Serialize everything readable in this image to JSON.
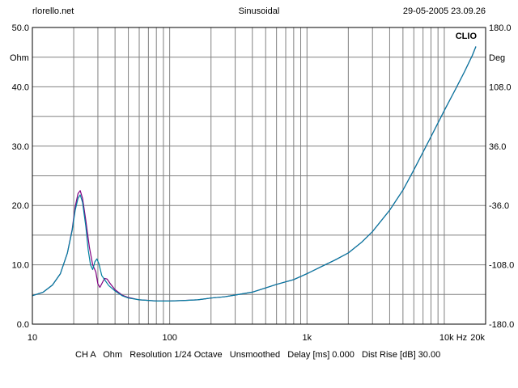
{
  "header": {
    "site": "rlorello.net",
    "title": "Sinusoidal",
    "timestamp": "29-05-2005 23.09.26"
  },
  "footer": {
    "info": "CH A   Ohm   Resolution 1/24 Octave   Unsmoothed   Delay [ms] 0.000   Dist Rise [dB] 30.00"
  },
  "brand": "CLIO",
  "colors": {
    "grid": "#808080",
    "series_a": "#800080",
    "series_b": "#0080a0"
  },
  "chart_data": {
    "type": "line",
    "xscale": "log",
    "xlim": [
      10,
      20000
    ],
    "x_tick_labels": [
      "10",
      "100",
      "1k",
      "10k Hz",
      "20k"
    ],
    "x_tick_values": [
      10,
      100,
      1000,
      10000,
      20000
    ],
    "ylabel_left": "Ohm",
    "ylim_left": [
      0,
      50
    ],
    "y_ticks_left": [
      "50.0",
      "40.0",
      "30.0",
      "20.0",
      "10.0",
      "0.0"
    ],
    "ylabel_right": "Deg",
    "ylim_right": [
      -180,
      180
    ],
    "y_ticks_right": [
      "180.0",
      "108.0",
      "36.0",
      "-36.0",
      "-108.0",
      "-180.0"
    ],
    "grid": true,
    "series": [
      {
        "color": "#800080",
        "points": [
          [
            10,
            4.8
          ],
          [
            12,
            5.4
          ],
          [
            14,
            6.6
          ],
          [
            16,
            8.5
          ],
          [
            18,
            12.0
          ],
          [
            19.5,
            16.0
          ],
          [
            20.5,
            19.8
          ],
          [
            21.5,
            22.0
          ],
          [
            22.3,
            22.5
          ],
          [
            23.2,
            21.2
          ],
          [
            24.5,
            17.5
          ],
          [
            26,
            13.0
          ],
          [
            27.5,
            10.0
          ],
          [
            29,
            8.8
          ],
          [
            30,
            6.8
          ],
          [
            31,
            6.2
          ],
          [
            32,
            6.8
          ],
          [
            33.5,
            7.7
          ],
          [
            35,
            7.6
          ],
          [
            37,
            6.8
          ],
          [
            40,
            5.8
          ],
          [
            45,
            4.9
          ],
          [
            50,
            4.5
          ],
          [
            60,
            4.1
          ],
          [
            70,
            4.0
          ],
          [
            80,
            3.9
          ],
          [
            100,
            3.9
          ],
          [
            130,
            4.0
          ],
          [
            160,
            4.1
          ],
          [
            200,
            4.4
          ],
          [
            250,
            4.6
          ],
          [
            300,
            4.9
          ],
          [
            400,
            5.4
          ],
          [
            500,
            6.1
          ],
          [
            600,
            6.7
          ],
          [
            800,
            7.5
          ],
          [
            1000,
            8.5
          ],
          [
            1300,
            9.8
          ],
          [
            1600,
            10.8
          ],
          [
            2000,
            12.0
          ],
          [
            2500,
            13.8
          ],
          [
            3000,
            15.6
          ],
          [
            4000,
            19.2
          ],
          [
            5000,
            22.6
          ],
          [
            6000,
            26.0
          ],
          [
            7000,
            29.0
          ],
          [
            8000,
            31.6
          ],
          [
            10000,
            36.0
          ],
          [
            12000,
            39.5
          ],
          [
            14000,
            42.5
          ],
          [
            16000,
            45.3
          ],
          [
            17000,
            46.8
          ]
        ]
      },
      {
        "color": "#0080a0",
        "points": [
          [
            10,
            4.8
          ],
          [
            12,
            5.4
          ],
          [
            14,
            6.6
          ],
          [
            16,
            8.5
          ],
          [
            18,
            12.0
          ],
          [
            19.5,
            15.8
          ],
          [
            20.5,
            19.2
          ],
          [
            21.5,
            21.2
          ],
          [
            22.3,
            21.8
          ],
          [
            23.2,
            20.5
          ],
          [
            24.5,
            16.5
          ],
          [
            25.5,
            12.5
          ],
          [
            26.5,
            10.0
          ],
          [
            27.5,
            9.2
          ],
          [
            28.5,
            10.5
          ],
          [
            29.5,
            11.0
          ],
          [
            30.5,
            10.2
          ],
          [
            32,
            8.2
          ],
          [
            34,
            7.3
          ],
          [
            36,
            6.5
          ],
          [
            40,
            5.6
          ],
          [
            45,
            4.8
          ],
          [
            50,
            4.4
          ],
          [
            60,
            4.1
          ],
          [
            70,
            4.0
          ],
          [
            80,
            3.9
          ],
          [
            100,
            3.9
          ],
          [
            130,
            4.0
          ],
          [
            160,
            4.1
          ],
          [
            200,
            4.4
          ],
          [
            250,
            4.6
          ],
          [
            300,
            4.9
          ],
          [
            400,
            5.4
          ],
          [
            500,
            6.1
          ],
          [
            600,
            6.7
          ],
          [
            800,
            7.5
          ],
          [
            1000,
            8.5
          ],
          [
            1300,
            9.8
          ],
          [
            1600,
            10.8
          ],
          [
            2000,
            12.0
          ],
          [
            2500,
            13.8
          ],
          [
            3000,
            15.6
          ],
          [
            4000,
            19.2
          ],
          [
            5000,
            22.6
          ],
          [
            6000,
            26.0
          ],
          [
            7000,
            29.0
          ],
          [
            8000,
            31.6
          ],
          [
            10000,
            36.0
          ],
          [
            12000,
            39.5
          ],
          [
            14000,
            42.5
          ],
          [
            16000,
            45.3
          ],
          [
            17000,
            46.8
          ]
        ]
      }
    ]
  }
}
